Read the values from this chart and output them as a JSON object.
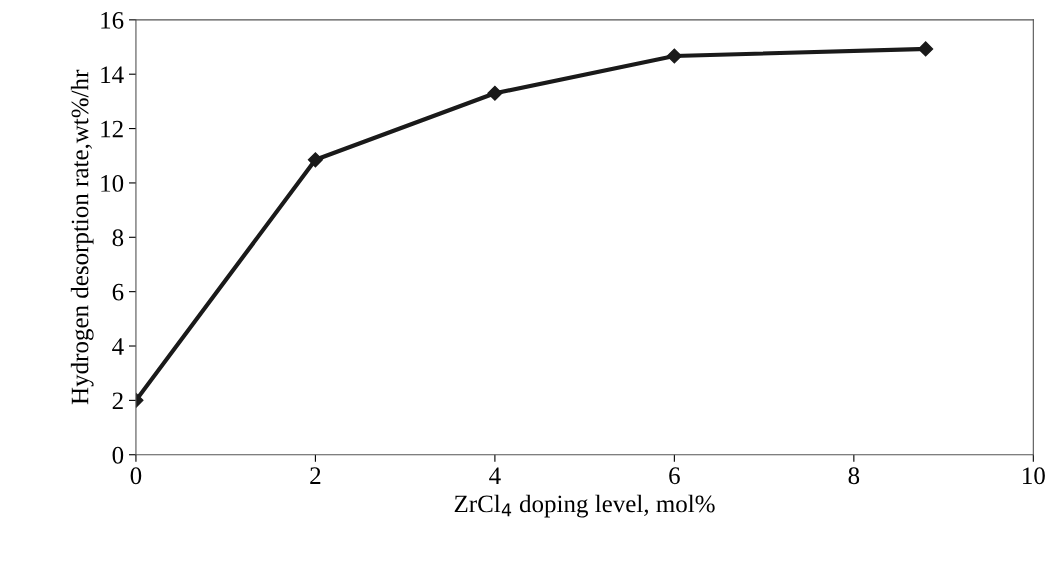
{
  "chart_data": {
    "type": "line",
    "xlabel": "ZrCl$_{4}$ doping level, mol%",
    "ylabel": "Hydrogen desorption rate,wt%/hr",
    "series": [
      {
        "color": "#1a1a1a",
        "x": [
          0,
          2,
          4,
          6,
          8.8
        ],
        "values": [
          2.0,
          10.85,
          13.3,
          14.67,
          14.93
        ]
      }
    ],
    "xlim": [
      0,
      10
    ],
    "xticks": [
      0,
      2,
      4,
      6,
      8,
      10
    ],
    "ylim": [
      0,
      16
    ],
    "yticks": [
      0,
      2,
      4,
      6,
      8,
      10,
      12,
      14,
      16
    ],
    "grid": false,
    "legend": false,
    "marker": "diamond",
    "line_style": "solid"
  }
}
